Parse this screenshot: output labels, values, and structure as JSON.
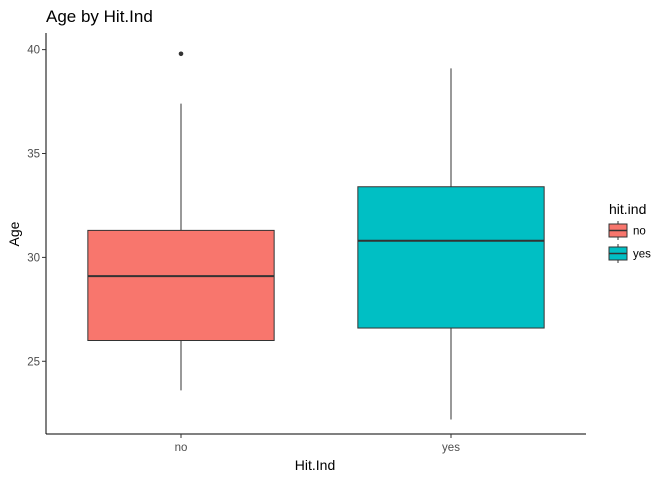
{
  "chart_data": {
    "type": "boxplot",
    "title": "Age by Hit.Ind",
    "xlabel": "Hit.Ind",
    "ylabel": "Age",
    "ylim": [
      21.5,
      40.8
    ],
    "yticks": [
      25,
      30,
      35,
      40
    ],
    "categories": [
      "no",
      "yes"
    ],
    "boxes": [
      {
        "category": "no",
        "color": "#F8766D",
        "lower_whisker": 23.6,
        "q1": 26.0,
        "median": 29.1,
        "q3": 31.3,
        "upper_whisker": 37.4,
        "outliers": [
          39.8
        ]
      },
      {
        "category": "yes",
        "color": "#00BFC4",
        "lower_whisker": 22.2,
        "q1": 26.6,
        "median": 30.8,
        "q3": 33.4,
        "upper_whisker": 39.1,
        "outliers": []
      }
    ],
    "legend": {
      "title": "hit.ind",
      "position": "right",
      "items": [
        {
          "label": "no",
          "color": "#F8766D"
        },
        {
          "label": "yes",
          "color": "#00BFC4"
        }
      ]
    },
    "grid": false
  }
}
